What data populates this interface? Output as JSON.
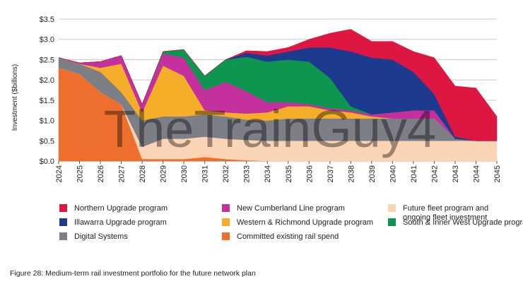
{
  "chart_data": {
    "type": "area",
    "stacked": true,
    "ylabel": "Investment ($billions)",
    "ylim": [
      0,
      3.5
    ],
    "yticks": [
      "$0.0",
      "$0.5",
      "$1.0",
      "$1.5",
      "$2.0",
      "$2.5",
      "$3.0",
      "$3.5"
    ],
    "x": [
      "2024",
      "2025",
      "2026",
      "2027",
      "2028",
      "2029",
      "2030",
      "2031",
      "2032",
      "2033",
      "2034",
      "2035",
      "2036",
      "2037",
      "2038",
      "2039",
      "2040",
      "2041",
      "2042",
      "2043",
      "2044",
      "2045"
    ],
    "grid": "horizontal",
    "legend_position": "bottom",
    "series": [
      {
        "name": "Committed existing rail spend",
        "color": "#ee6f2d",
        "values": [
          2.3,
          2.15,
          1.7,
          1.4,
          0.05,
          0.05,
          0.05,
          0.1,
          0.05,
          0.02,
          0,
          0,
          0,
          0,
          0,
          0,
          0,
          0,
          0,
          0,
          0,
          0
        ]
      },
      {
        "name": "Future fleet program and ongoing fleet investment",
        "color": "#fbd4b5",
        "values": [
          0,
          0,
          0,
          0,
          0.3,
          0.5,
          0.5,
          0.5,
          0.5,
          0.5,
          0.5,
          0.5,
          0.5,
          0.5,
          0.5,
          0.5,
          0.5,
          0.5,
          0.5,
          0.5,
          0.5,
          0.5
        ]
      },
      {
        "name": "Digital Systems",
        "color": "#7d7f87",
        "values": [
          0.25,
          0.25,
          0.5,
          0.3,
          0.65,
          0.55,
          0.55,
          0.55,
          0.55,
          0.5,
          0.5,
          0.55,
          0.55,
          0.55,
          0.55,
          0.55,
          0.55,
          0.55,
          0.55,
          0.05,
          0,
          0
        ]
      },
      {
        "name": "Western & Richmond Upgrade program",
        "color": "#f5ae2a",
        "values": [
          0,
          0,
          0.1,
          0.7,
          0.2,
          1.25,
          1.0,
          0.1,
          0.1,
          0.15,
          0.2,
          0.3,
          0.3,
          0.2,
          0.15,
          0.05,
          0,
          0,
          0,
          0,
          0,
          0
        ]
      },
      {
        "name": "New Cumberland Line program",
        "color": "#c4309d",
        "values": [
          0,
          0.02,
          0.15,
          0.2,
          0.2,
          0.3,
          0.45,
          0.5,
          0.75,
          0.55,
          0.25,
          0.1,
          0.05,
          0.05,
          0.05,
          0.05,
          0.15,
          0.2,
          0.2,
          0,
          0,
          0
        ]
      },
      {
        "name": "South & Inner West Upgrade program",
        "color": "#0e9650",
        "values": [
          0,
          0,
          0,
          0,
          0,
          0.05,
          0.2,
          0.35,
          0.55,
          0.85,
          1.0,
          1.05,
          1.05,
          0.75,
          0.1,
          0,
          0,
          0,
          0,
          0,
          0,
          0
        ]
      },
      {
        "name": "Illawarra Upgrade program",
        "color": "#1d3b8e",
        "values": [
          0,
          0,
          0,
          0,
          0,
          0,
          0,
          0,
          0,
          0.1,
          0.15,
          0.2,
          0.35,
          0.75,
          1.35,
          1.4,
          1.3,
          0.95,
          0.4,
          0.05,
          0,
          0
        ]
      },
      {
        "name": "Northern Upgrade program",
        "color": "#dd1642",
        "values": [
          0,
          0,
          0,
          0,
          0,
          0,
          0,
          0,
          0,
          0.05,
          0.1,
          0.1,
          0.2,
          0.35,
          0.55,
          0.4,
          0.45,
          0.5,
          0.9,
          1.25,
          1.3,
          0.6
        ]
      }
    ]
  },
  "legend": [
    {
      "name": "Northern Upgrade program",
      "color": "#dd1642"
    },
    {
      "name": "New Cumberland Line program",
      "color": "#c4309d"
    },
    {
      "name": "Future fleet program and\nongoing fleet investment",
      "color": "#fbd4b5"
    },
    {
      "name": "Illawarra Upgrade program",
      "color": "#1d3b8e"
    },
    {
      "name": "Western & Richmond Upgrade program",
      "color": "#f5ae2a"
    },
    {
      "name": "South & Inner West Upgrade program",
      "color": "#0e9650"
    },
    {
      "name": "Digital Systems",
      "color": "#7d7f87"
    },
    {
      "name": "Committed existing rail spend",
      "color": "#ee6f2d"
    }
  ],
  "watermark": "TheTrainGuy4",
  "caption": "Figure 28: Medium-term rail investment portfolio for the future network plan"
}
